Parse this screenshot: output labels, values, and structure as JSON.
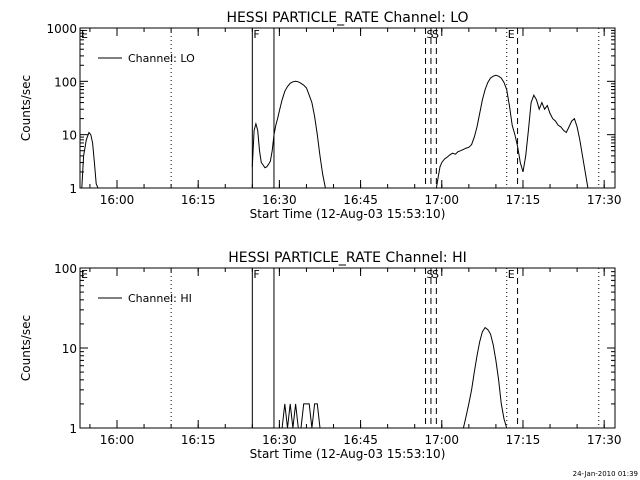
{
  "footer": {
    "timestamp": "24-Jan-2010 01:39"
  },
  "chart_data": [
    {
      "type": "line",
      "title": "HESSI PARTICLE_RATE Channel: LO",
      "xlabel": "Start Time (12-Aug-03 15:53:10)",
      "ylabel": "Counts/sec",
      "yscale": "log",
      "xlim": [
        "15:53:10",
        "17:32"
      ],
      "ylim": [
        1,
        1000
      ],
      "x_ticks": [
        "16:00",
        "16:15",
        "16:30",
        "16:45",
        "17:00",
        "17:15",
        "17:30"
      ],
      "y_ticks": [
        "1",
        "10",
        "100",
        "1000"
      ],
      "legend": {
        "entry": "Channel: LO",
        "placement": "top-left"
      },
      "flags": [
        {
          "label": "E",
          "time": "15:53:10",
          "style": "dotted"
        },
        {
          "label": "",
          "time": "16:10",
          "style": "dotted"
        },
        {
          "label": "F",
          "time": "16:25",
          "style": "solid"
        },
        {
          "label": "",
          "time": "16:29",
          "style": "solid"
        },
        {
          "label": "S",
          "time": "16:57",
          "style": "dashed"
        },
        {
          "label": "S",
          "time": "16:58",
          "style": "dashed"
        },
        {
          "label": "",
          "time": "16:59",
          "style": "dashed"
        },
        {
          "label": "E",
          "time": "17:12",
          "style": "dotted"
        },
        {
          "label": "",
          "time": "17:14",
          "style": "dashed"
        },
        {
          "label": "",
          "time": "17:29",
          "style": "dotted"
        }
      ],
      "series": [
        {
          "name": "Channel: LO",
          "x": [
            "15:53:30",
            "15:53:50",
            "15:54:20",
            "15:54:50",
            "15:55:10",
            "15:55:30",
            "15:55:50",
            "15:56:10",
            "15:56:30"
          ],
          "y": [
            1,
            4,
            8,
            11,
            10,
            7,
            3,
            1.2,
            1
          ]
        },
        {
          "name": "Channel: LO",
          "x": [
            "16:25",
            "16:25:20",
            "16:25:40",
            "16:26",
            "16:26:20",
            "16:26:40",
            "16:27",
            "16:27:20",
            "16:27:40",
            "16:28",
            "16:28:20",
            "16:28:40",
            "16:29",
            "16:29:20",
            "16:29:40",
            "16:30",
            "16:30:30",
            "16:31",
            "16:31:30",
            "16:32",
            "16:32:30",
            "16:33",
            "16:33:30",
            "16:34",
            "16:34:30",
            "16:35",
            "16:35:30",
            "16:36",
            "16:36:30",
            "16:37",
            "16:37:30",
            "16:38",
            "16:38:30"
          ],
          "y": [
            2.5,
            12,
            16,
            12,
            5,
            3,
            2.7,
            2.4,
            2.5,
            2.8,
            3.2,
            5,
            10,
            15,
            20,
            28,
            45,
            65,
            80,
            92,
            98,
            100,
            98,
            92,
            85,
            75,
            55,
            40,
            22,
            10,
            4,
            1.8,
            1
          ]
        },
        {
          "name": "Channel: LO",
          "x": [
            "16:59",
            "16:59:20",
            "16:59:40",
            "17:00",
            "17:00:30",
            "17:01",
            "17:01:30",
            "17:02",
            "17:02:30",
            "17:03",
            "17:03:30",
            "17:04",
            "17:04:30",
            "17:05",
            "17:05:30",
            "17:06",
            "17:06:30",
            "17:07",
            "17:07:30",
            "17:08",
            "17:08:30",
            "17:09",
            "17:09:30",
            "17:10",
            "17:10:30",
            "17:11",
            "17:11:30",
            "17:12",
            "17:12:30",
            "17:13",
            "17:13:30",
            "17:14",
            "17:14:30",
            "17:15",
            "17:15:30",
            "17:16",
            "17:16:30",
            "17:17",
            "17:17:30",
            "17:18",
            "17:18:30",
            "17:19",
            "17:19:30",
            "17:20",
            "17:20:30",
            "17:21",
            "17:21:30",
            "17:22",
            "17:22:30",
            "17:23",
            "17:23:30",
            "17:24",
            "17:24:30",
            "17:25",
            "17:25:30",
            "17:26",
            "17:26:30",
            "17:27"
          ],
          "y": [
            1,
            1.6,
            2.5,
            3.0,
            3.5,
            3.8,
            4.2,
            4.5,
            4.3,
            4.8,
            5,
            5.3,
            5.6,
            5.8,
            6.5,
            9,
            14,
            25,
            45,
            70,
            95,
            115,
            125,
            130,
            125,
            115,
            95,
            70,
            35,
            15,
            10,
            6,
            3,
            2,
            4,
            12,
            40,
            55,
            45,
            30,
            40,
            30,
            35,
            25,
            20,
            18,
            15,
            14,
            12,
            11,
            14,
            18,
            20,
            14,
            8,
            4,
            2,
            1
          ]
        }
      ]
    },
    {
      "type": "line",
      "title": "HESSI PARTICLE_RATE Channel: HI",
      "xlabel": "Start Time (12-Aug-03 15:53:10)",
      "ylabel": "Counts/sec",
      "yscale": "log",
      "xlim": [
        "15:53:10",
        "17:32"
      ],
      "ylim": [
        1,
        100
      ],
      "x_ticks": [
        "16:00",
        "16:15",
        "16:30",
        "16:45",
        "17:00",
        "17:15",
        "17:30"
      ],
      "y_ticks": [
        "1",
        "10",
        "100"
      ],
      "legend": {
        "entry": "Channel: HI",
        "placement": "top-left"
      },
      "flags": [
        {
          "label": "E",
          "time": "15:53:10",
          "style": "dotted"
        },
        {
          "label": "",
          "time": "16:10",
          "style": "dotted"
        },
        {
          "label": "F",
          "time": "16:25",
          "style": "solid"
        },
        {
          "label": "",
          "time": "16:29",
          "style": "solid"
        },
        {
          "label": "S",
          "time": "16:57",
          "style": "dashed"
        },
        {
          "label": "S",
          "time": "16:58",
          "style": "dashed"
        },
        {
          "label": "",
          "time": "16:59",
          "style": "dashed"
        },
        {
          "label": "E",
          "time": "17:12",
          "style": "dotted"
        },
        {
          "label": "",
          "time": "17:14",
          "style": "dashed"
        },
        {
          "label": "",
          "time": "17:29",
          "style": "dotted"
        }
      ],
      "series": [
        {
          "name": "Channel: HI",
          "x": [
            "16:30:30",
            "16:31",
            "16:31:30",
            "16:32",
            "16:32:30",
            "16:33",
            "16:33:30",
            "16:34",
            "16:34:30",
            "16:35",
            "16:35:30",
            "16:36",
            "16:36:30",
            "16:37",
            "16:37:30"
          ],
          "y": [
            1,
            2,
            1,
            2,
            1,
            2,
            1,
            1,
            2,
            2,
            2,
            1,
            2,
            2,
            1
          ]
        },
        {
          "name": "Channel: HI",
          "x": [
            "17:04",
            "17:04:30",
            "17:05",
            "17:05:30",
            "17:06",
            "17:06:30",
            "17:07",
            "17:07:30",
            "17:08",
            "17:08:30",
            "17:09",
            "17:09:30",
            "17:10",
            "17:10:30",
            "17:11",
            "17:11:30",
            "17:12"
          ],
          "y": [
            1,
            1.4,
            2,
            3,
            5,
            8,
            12,
            16,
            18,
            17,
            15,
            11,
            7,
            4,
            2,
            1.3,
            1
          ]
        }
      ]
    }
  ]
}
